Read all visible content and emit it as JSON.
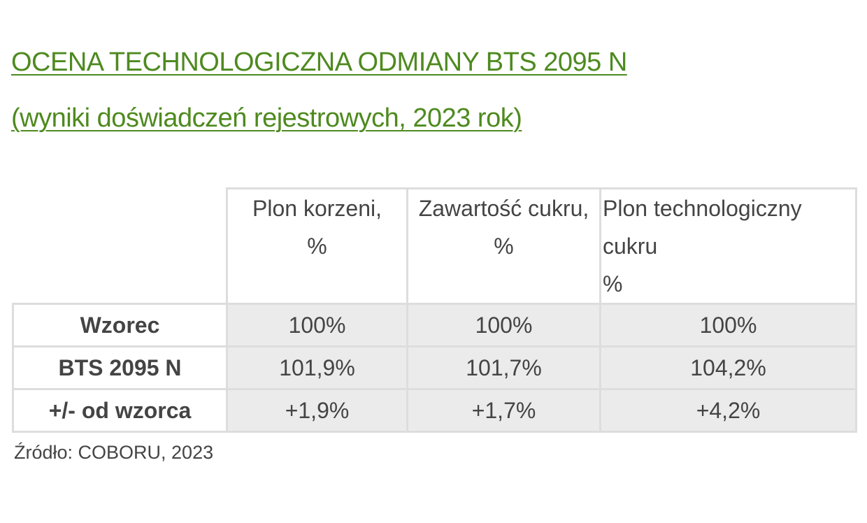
{
  "title_line1": "OCENA TECHNOLOGICZNA ODMIANY BTS 2095 N",
  "title_line2": "(wyniki doświadczeń rejestrowych, 2023 rok)",
  "table": {
    "headers": [
      {
        "line1": "Plon korzeni,",
        "line2": "%",
        "line3": ""
      },
      {
        "line1": "Zawartość cukru,",
        "line2": "%",
        "line3": ""
      },
      {
        "line1": "Plon technologiczny",
        "line2": "cukru",
        "line3": "%"
      }
    ],
    "rows": [
      {
        "label": "Wzorec",
        "values": [
          "100%",
          "100%",
          "100%"
        ]
      },
      {
        "label": "BTS 2095 N",
        "values": [
          "101,9%",
          "101,7%",
          "104,2%"
        ]
      },
      {
        "label": "+/- od wzorca",
        "values": [
          "+1,9%",
          "+1,7%",
          "+4,2%"
        ]
      }
    ]
  },
  "source": "Źródło: COBORU, 2023",
  "colors": {
    "accent": "#4e8a1f",
    "text": "#444444",
    "cell_bg": "#ebebeb",
    "border": "#dddddd"
  }
}
